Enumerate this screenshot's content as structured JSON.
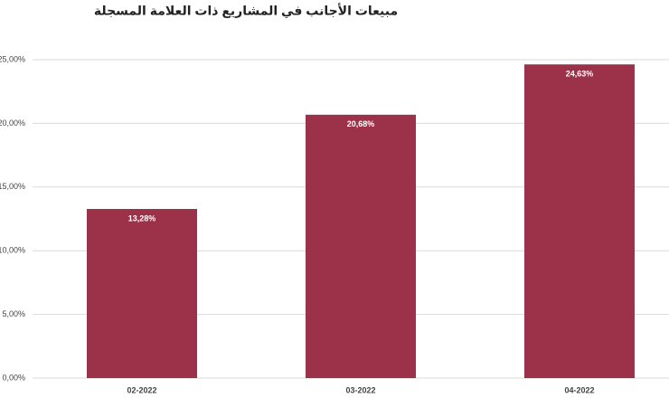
{
  "chart_data": {
    "type": "bar",
    "title": "مبيعات الأجانب في المشاريع ذات العلامة المسجلة",
    "categories": [
      "02-2022",
      "03-2022",
      "04-2022"
    ],
    "values": [
      13.28,
      20.68,
      24.63
    ],
    "value_labels": [
      "13,28%",
      "20,68%",
      "24,63%"
    ],
    "color": "#9b3249",
    "ylim": [
      0,
      25
    ],
    "yticks": [
      {
        "value": 0,
        "label": "0,00%"
      },
      {
        "value": 5,
        "label": "5,00%"
      },
      {
        "value": 10,
        "label": "10,00%"
      },
      {
        "value": 15,
        "label": "15,00%"
      },
      {
        "value": 20,
        "label": "20,00%"
      },
      {
        "value": 25,
        "label": "25,00%"
      }
    ],
    "grid": true
  }
}
